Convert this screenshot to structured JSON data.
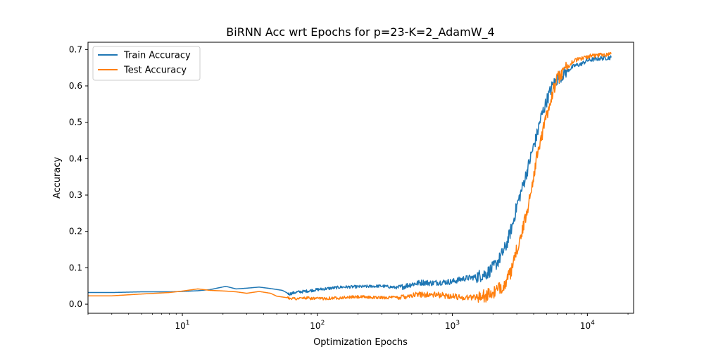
{
  "chart_data": {
    "type": "line",
    "title": "BiRNN Acc wrt Epochs for p=23-K=2_AdamW_4",
    "xlabel": "Optimization Epochs",
    "ylabel": "Accuracy",
    "xscale": "log",
    "xlim": [
      2,
      22000
    ],
    "ylim": [
      -0.025,
      0.72
    ],
    "xticks": [
      {
        "value": 10,
        "label": "10^1",
        "base": "10",
        "exp": "1"
      },
      {
        "value": 100,
        "label": "10^2",
        "base": "10",
        "exp": "2"
      },
      {
        "value": 1000,
        "label": "10^3",
        "base": "10",
        "exp": "3"
      },
      {
        "value": 10000,
        "label": "10^4",
        "base": "10",
        "exp": "4"
      }
    ],
    "yticks": [
      {
        "value": 0.0,
        "label": "0.0"
      },
      {
        "value": 0.1,
        "label": "0.1"
      },
      {
        "value": 0.2,
        "label": "0.2"
      },
      {
        "value": 0.3,
        "label": "0.3"
      },
      {
        "value": 0.4,
        "label": "0.4"
      },
      {
        "value": 0.5,
        "label": "0.5"
      },
      {
        "value": 0.6,
        "label": "0.6"
      },
      {
        "value": 0.7,
        "label": "0.7"
      }
    ],
    "legend_position": "top-left",
    "series": [
      {
        "name": "Train Accuracy",
        "color": "#1f77b4",
        "x": [
          2,
          3,
          5,
          8,
          10,
          13,
          16,
          21,
          25,
          30,
          37,
          45,
          55,
          62,
          70,
          80,
          100,
          150,
          200,
          300,
          400,
          500,
          600,
          700,
          800,
          1000,
          1200,
          1500,
          1800,
          2000,
          2200,
          2500,
          2800,
          3000,
          3300,
          3600,
          3900,
          4200,
          4500,
          5000,
          5500,
          6000,
          7000,
          8000,
          9000,
          10000,
          12000,
          15000
        ],
        "y": [
          0.032,
          0.032,
          0.034,
          0.034,
          0.035,
          0.037,
          0.04,
          0.049,
          0.042,
          0.044,
          0.047,
          0.043,
          0.038,
          0.028,
          0.033,
          0.035,
          0.04,
          0.047,
          0.048,
          0.05,
          0.045,
          0.055,
          0.06,
          0.058,
          0.06,
          0.062,
          0.07,
          0.075,
          0.085,
          0.1,
          0.12,
          0.16,
          0.22,
          0.27,
          0.32,
          0.37,
          0.42,
          0.46,
          0.51,
          0.56,
          0.6,
          0.62,
          0.64,
          0.655,
          0.66,
          0.67,
          0.675,
          0.678
        ]
      },
      {
        "name": "Test Accuracy",
        "color": "#ff7f0e",
        "x": [
          2,
          3,
          5,
          8,
          10,
          13,
          16,
          21,
          25,
          30,
          37,
          45,
          50,
          62,
          70,
          80,
          100,
          150,
          200,
          300,
          400,
          500,
          600,
          700,
          800,
          1000,
          1200,
          1500,
          1800,
          2000,
          2200,
          2500,
          2800,
          3000,
          3300,
          3600,
          3900,
          4200,
          4500,
          5000,
          5500,
          6000,
          7000,
          8000,
          9000,
          10000,
          12000,
          15000
        ],
        "y": [
          0.023,
          0.023,
          0.028,
          0.032,
          0.036,
          0.042,
          0.038,
          0.036,
          0.034,
          0.03,
          0.035,
          0.03,
          0.022,
          0.017,
          0.015,
          0.017,
          0.015,
          0.018,
          0.02,
          0.018,
          0.019,
          0.025,
          0.027,
          0.026,
          0.025,
          0.022,
          0.018,
          0.02,
          0.024,
          0.03,
          0.04,
          0.06,
          0.1,
          0.15,
          0.2,
          0.26,
          0.33,
          0.4,
          0.45,
          0.52,
          0.58,
          0.62,
          0.65,
          0.67,
          0.675,
          0.68,
          0.685,
          0.688
        ]
      }
    ]
  }
}
